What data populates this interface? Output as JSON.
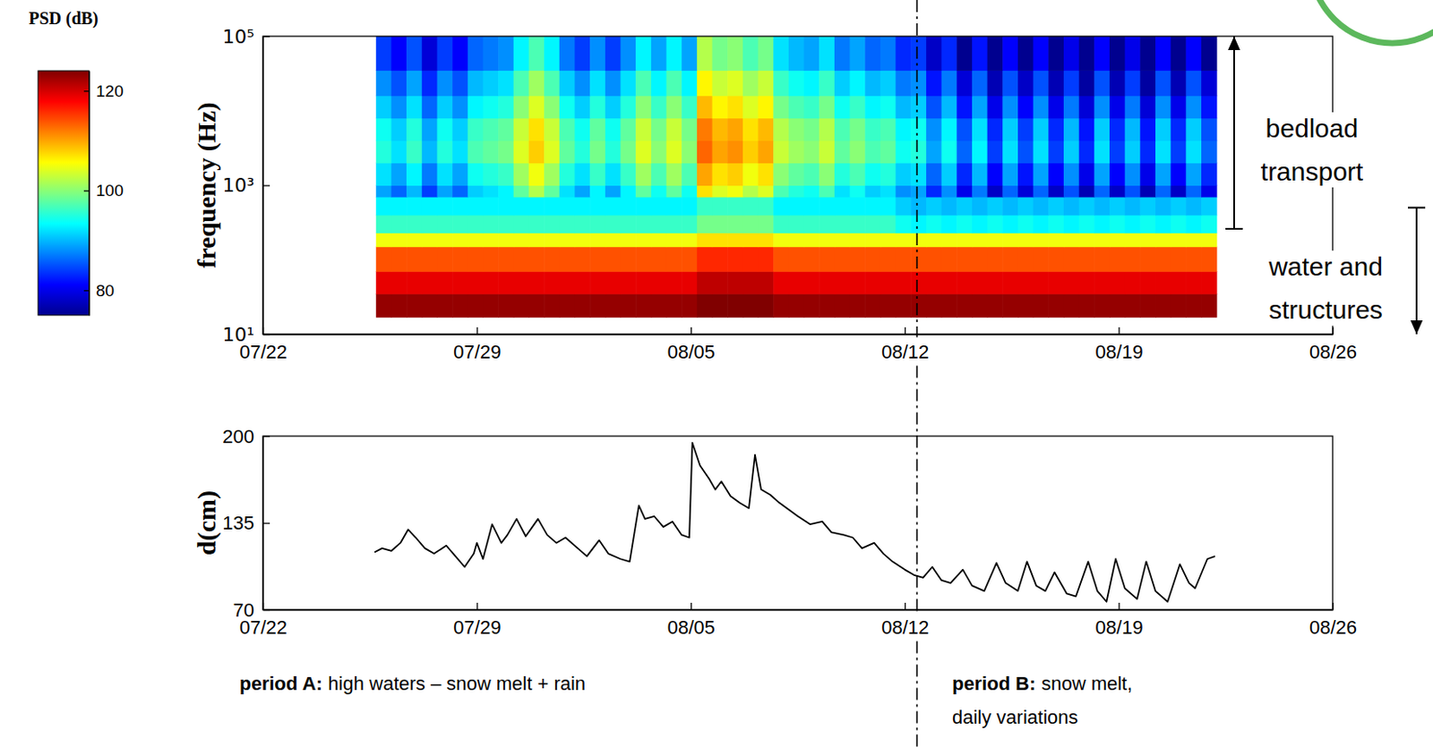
{
  "chart_data": [
    {
      "type": "heatmap",
      "y_label": "frequency (Hz)",
      "xlim": [
        0,
        35
      ],
      "xticks": [
        {
          "value": 0,
          "label": "07/22"
        },
        {
          "value": 7,
          "label": "07/29"
        },
        {
          "value": 14,
          "label": "08/05"
        },
        {
          "value": 21,
          "label": "08/12"
        },
        {
          "value": 28,
          "label": "08/19"
        },
        {
          "value": 35,
          "label": "08/26"
        }
      ],
      "ylim": [
        10,
        100000
      ],
      "yticks": [
        {
          "value": 10,
          "label": "10¹"
        },
        {
          "value": 1000,
          "label": "10³"
        },
        {
          "value": 100000,
          "label": "10⁵"
        }
      ],
      "log": "y",
      "x_edges": [
        3.7,
        4.2,
        4.7,
        5.2,
        5.7,
        6.2,
        6.7,
        7.2,
        7.7,
        8.2,
        8.7,
        9.2,
        9.7,
        10.2,
        10.7,
        11.2,
        11.7,
        12.2,
        12.7,
        13.2,
        13.7,
        14.2,
        14.7,
        15.2,
        15.7,
        16.2,
        16.7,
        17.2,
        17.7,
        18.2,
        18.7,
        19.2,
        19.7,
        20.2,
        20.7,
        21.2,
        21.7,
        22.2,
        22.7,
        23.2,
        23.7,
        24.2,
        24.7,
        25.2,
        25.7,
        26.2,
        26.7,
        27.2,
        27.7,
        28.2,
        28.7,
        29.2,
        29.7,
        30.2,
        30.7,
        31.2
      ],
      "y_edges": [
        17,
        35,
        70,
        150,
        230,
        400,
        700,
        1000,
        2000,
        4000,
        8000,
        16000,
        35000,
        100000
      ],
      "cells": [
        [
          123,
          123,
          123,
          123,
          123,
          123,
          123,
          123,
          123,
          123,
          123,
          123,
          123,
          123,
          123,
          123,
          123,
          123,
          123,
          123,
          123,
          124,
          124,
          124,
          124,
          124,
          123,
          123,
          123,
          123,
          123,
          123,
          123,
          123,
          123,
          123,
          123,
          123,
          123,
          123,
          123,
          123,
          123,
          123,
          123,
          123,
          123,
          123,
          123,
          123,
          123,
          123,
          123,
          123,
          123
        ],
        [
          119,
          119,
          119,
          119,
          119,
          119,
          119,
          119,
          119,
          119,
          119,
          119,
          119,
          119,
          119,
          119,
          119,
          119,
          119,
          119,
          119,
          121,
          121,
          121,
          121,
          121,
          119,
          119,
          119,
          119,
          119,
          119,
          119,
          119,
          119,
          119,
          119,
          119,
          119,
          119,
          119,
          119,
          119,
          119,
          119,
          119,
          119,
          119,
          119,
          119,
          119,
          119,
          119,
          119,
          119
        ],
        [
          114,
          114,
          114,
          114,
          114,
          114,
          114,
          114,
          114,
          114,
          114,
          114,
          114,
          114,
          114,
          114,
          114,
          114,
          114,
          114,
          114,
          116,
          116,
          116,
          116,
          116,
          114,
          114,
          114,
          114,
          114,
          114,
          114,
          114,
          114,
          114,
          114,
          114,
          114,
          114,
          114,
          114,
          114,
          114,
          114,
          114,
          114,
          114,
          114,
          114,
          114,
          114,
          114,
          114,
          114
        ],
        [
          105,
          105,
          105,
          105,
          105,
          105,
          105,
          105,
          105,
          105,
          105,
          105,
          105,
          105,
          105,
          105,
          105,
          105,
          105,
          105,
          105,
          107,
          107,
          107,
          107,
          107,
          105,
          105,
          105,
          105,
          105,
          105,
          105,
          105,
          105,
          105,
          105,
          105,
          105,
          105,
          105,
          105,
          105,
          105,
          105,
          105,
          105,
          105,
          105,
          105,
          105,
          105,
          105,
          105,
          105
        ],
        [
          96,
          96,
          96,
          96,
          96,
          96,
          96,
          96,
          96,
          96,
          96,
          96,
          96,
          96,
          96,
          96,
          96,
          96,
          96,
          96,
          96,
          99,
          99,
          99,
          99,
          99,
          96,
          96,
          96,
          96,
          96,
          96,
          96,
          96,
          94,
          93,
          94,
          93,
          94,
          93,
          94,
          93,
          94,
          93,
          94,
          93,
          94,
          93,
          94,
          93,
          94,
          93,
          94,
          93,
          94
        ],
        [
          93,
          93,
          93,
          93,
          93,
          93,
          93,
          93,
          93,
          93,
          93,
          93,
          93,
          93,
          93,
          93,
          93,
          93,
          93,
          93,
          93,
          96,
          96,
          96,
          96,
          96,
          93,
          93,
          93,
          93,
          93,
          93,
          93,
          93,
          91,
          90,
          91,
          90,
          91,
          90,
          91,
          90,
          91,
          90,
          91,
          90,
          91,
          90,
          91,
          90,
          91,
          90,
          91,
          90,
          91
        ],
        [
          89,
          86,
          90,
          84,
          89,
          86,
          91,
          92,
          93,
          98,
          102,
          98,
          92,
          89,
          93,
          89,
          93,
          98,
          94,
          98,
          94,
          107,
          104,
          105,
          102,
          104,
          97,
          95,
          94,
          97,
          92,
          94,
          91,
          92,
          88,
          89,
          83,
          88,
          80,
          87,
          78,
          86,
          79,
          86,
          78,
          85,
          77,
          86,
          78,
          85,
          77,
          86,
          78,
          86,
          80
        ],
        [
          92,
          89,
          93,
          87,
          92,
          89,
          94,
          95,
          96,
          101,
          105,
          101,
          95,
          92,
          96,
          92,
          96,
          101,
          97,
          101,
          97,
          110,
          107,
          108,
          105,
          107,
          100,
          98,
          97,
          100,
          95,
          97,
          94,
          95,
          91,
          92,
          86,
          91,
          83,
          90,
          81,
          89,
          82,
          89,
          81,
          88,
          80,
          89,
          81,
          88,
          80,
          89,
          81,
          89,
          83
        ],
        [
          95,
          92,
          96,
          90,
          95,
          92,
          97,
          98,
          99,
          104,
          108,
          104,
          98,
          95,
          99,
          95,
          99,
          104,
          100,
          104,
          100,
          113,
          110,
          111,
          108,
          110,
          103,
          101,
          100,
          103,
          98,
          100,
          97,
          98,
          94,
          95,
          89,
          94,
          86,
          93,
          84,
          92,
          85,
          92,
          84,
          91,
          83,
          92,
          84,
          91,
          83,
          92,
          84,
          92,
          86
        ],
        [
          94,
          91,
          95,
          89,
          94,
          91,
          96,
          97,
          98,
          103,
          107,
          103,
          97,
          94,
          98,
          94,
          98,
          103,
          99,
          103,
          99,
          112,
          109,
          110,
          107,
          109,
          102,
          100,
          99,
          102,
          97,
          99,
          96,
          97,
          93,
          94,
          88,
          93,
          85,
          92,
          83,
          91,
          84,
          91,
          83,
          90,
          82,
          91,
          83,
          90,
          82,
          91,
          83,
          91,
          85
        ],
        [
          91,
          88,
          92,
          86,
          91,
          88,
          93,
          94,
          95,
          100,
          104,
          100,
          94,
          91,
          95,
          91,
          95,
          100,
          96,
          100,
          96,
          109,
          106,
          107,
          104,
          106,
          99,
          97,
          96,
          99,
          94,
          96,
          93,
          94,
          90,
          91,
          85,
          90,
          82,
          89,
          80,
          88,
          81,
          88,
          80,
          87,
          79,
          88,
          80,
          87,
          79,
          88,
          80,
          88,
          82
        ],
        [
          88,
          85,
          89,
          83,
          88,
          85,
          90,
          91,
          92,
          97,
          101,
          97,
          91,
          88,
          92,
          88,
          92,
          97,
          93,
          97,
          93,
          106,
          103,
          104,
          101,
          103,
          96,
          94,
          93,
          96,
          91,
          93,
          90,
          91,
          87,
          88,
          82,
          87,
          79,
          86,
          77,
          85,
          78,
          85,
          77,
          84,
          76,
          85,
          77,
          84,
          76,
          85,
          77,
          85,
          79
        ],
        [
          84,
          81,
          85,
          79,
          84,
          81,
          86,
          87,
          88,
          93,
          97,
          93,
          87,
          84,
          88,
          84,
          88,
          93,
          89,
          93,
          89,
          102,
          99,
          100,
          97,
          99,
          92,
          90,
          89,
          92,
          87,
          89,
          86,
          87,
          83,
          84,
          78,
          83,
          75,
          82,
          73,
          81,
          74,
          81,
          73,
          80,
          72,
          81,
          73,
          80,
          72,
          81,
          73,
          81,
          75
        ]
      ],
      "colorbar": {
        "title": "PSD (dB)",
        "range": [
          75,
          124
        ],
        "ticks": [
          80,
          100,
          120
        ]
      },
      "annotations": [
        {
          "text": "bedload transport",
          "range": [
            260,
            100000
          ]
        },
        {
          "text": "water and structures",
          "range": [
            10,
            500
          ]
        }
      ]
    },
    {
      "type": "line",
      "y_label": "d(cm)",
      "color": "#000000",
      "xlim": [
        0,
        35
      ],
      "xticks": [
        {
          "value": 0,
          "label": "07/22"
        },
        {
          "value": 7,
          "label": "07/29"
        },
        {
          "value": 14,
          "label": "08/05"
        },
        {
          "value": 21,
          "label": "08/12"
        },
        {
          "value": 28,
          "label": "08/19"
        },
        {
          "value": 35,
          "label": "08/26"
        }
      ],
      "ylim": [
        70,
        200
      ],
      "yticks": [
        70,
        135,
        200
      ],
      "x": [
        3.65,
        3.9,
        4.2,
        4.5,
        4.75,
        5.0,
        5.3,
        5.6,
        6.0,
        6.3,
        6.6,
        6.9,
        7.0,
        7.2,
        7.5,
        7.8,
        8.0,
        8.3,
        8.6,
        9.0,
        9.3,
        9.6,
        9.9,
        10.3,
        10.6,
        11.0,
        11.3,
        11.7,
        12.0,
        12.3,
        12.5,
        12.8,
        13.1,
        13.4,
        13.7,
        13.95,
        14.05,
        14.3,
        14.6,
        14.8,
        15.0,
        15.3,
        15.6,
        15.9,
        16.1,
        16.3,
        16.6,
        16.9,
        17.2,
        17.5,
        17.9,
        18.3,
        18.6,
        19.0,
        19.3,
        19.6,
        20.0,
        20.3,
        20.6,
        21.0,
        21.3,
        21.6,
        21.9,
        22.2,
        22.5,
        22.9,
        23.2,
        23.6,
        24.0,
        24.3,
        24.7,
        25.0,
        25.3,
        25.6,
        25.9,
        26.3,
        26.6,
        27.0,
        27.3,
        27.6,
        27.9,
        28.2,
        28.6,
        28.9,
        29.2,
        29.6,
        30.0,
        30.3,
        30.5,
        30.9,
        31.15
      ],
      "values": [
        113,
        116,
        114,
        120,
        130,
        124,
        116,
        112,
        118,
        110,
        102,
        112,
        120,
        108,
        134,
        120,
        126,
        138,
        125,
        138,
        126,
        120,
        124,
        116,
        110,
        122,
        112,
        108,
        106,
        148,
        138,
        140,
        132,
        136,
        126,
        124,
        195,
        178,
        168,
        160,
        166,
        155,
        150,
        146,
        186,
        160,
        156,
        150,
        145,
        140,
        134,
        136,
        128,
        126,
        124,
        116,
        120,
        112,
        106,
        100,
        96,
        94,
        102,
        92,
        90,
        100,
        88,
        84,
        105,
        90,
        84,
        106,
        88,
        84,
        98,
        82,
        80,
        106,
        84,
        76,
        108,
        86,
        78,
        106,
        84,
        76,
        104,
        90,
        86,
        108,
        110
      ],
      "divider_x": 21.4,
      "annotations": [
        {
          "label": "period A:",
          "text": "high waters – snow melt + rain"
        },
        {
          "label": "period B:",
          "text": "snow melt, daily variations"
        }
      ]
    }
  ]
}
